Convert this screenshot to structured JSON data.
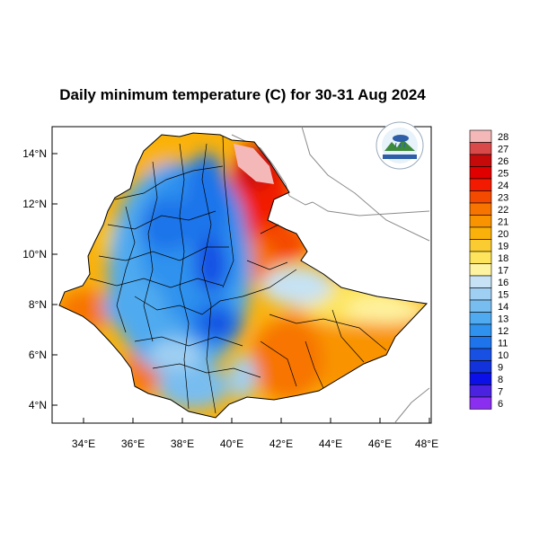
{
  "title": "Daily minimum temperature (C) for 30-31 Aug 2024",
  "lon_ticks": [
    "34°E",
    "36°E",
    "38°E",
    "40°E",
    "42°E",
    "44°E",
    "46°E",
    "48°E"
  ],
  "lat_ticks": [
    "14°N",
    "12°N",
    "10°N",
    "8°N",
    "6°N",
    "4°N"
  ],
  "map_extent": {
    "lon": [
      33,
      48.2
    ],
    "lat": [
      3.2,
      15
    ]
  },
  "colorbar": {
    "labels": [
      "28",
      "27",
      "26",
      "25",
      "24",
      "23",
      "22",
      "21",
      "20",
      "19",
      "18",
      "17",
      "16",
      "15",
      "14",
      "13",
      "12",
      "11",
      "10",
      "9",
      "8",
      "7",
      "6"
    ],
    "colors": [
      "#f4b8b8",
      "#d9494a",
      "#c60a0a",
      "#e00000",
      "#f21a00",
      "#f44a00",
      "#f77400",
      "#f99400",
      "#fab20a",
      "#fbcc32",
      "#fde45c",
      "#fef3a0",
      "#c6e2f4",
      "#9fcff2",
      "#78bdf0",
      "#4faaef",
      "#2e92ee",
      "#1e74ea",
      "#1850e4",
      "#1232dc",
      "#0b10e8",
      "#4a22e0",
      "#8a2ef0"
    ]
  },
  "logo": {
    "text": "Ethiopian Meteorology Institute"
  }
}
